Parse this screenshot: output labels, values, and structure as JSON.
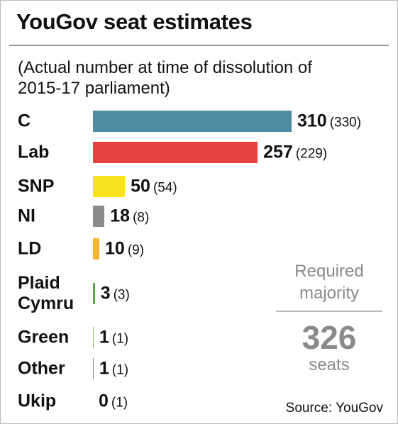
{
  "chart_data": {
    "type": "bar",
    "orientation": "horizontal",
    "title": "YouGov seat estimates",
    "subtitle": "(Actual number at time of dissolution of 2015-17 parliament)",
    "categories": [
      "C",
      "Lab",
      "SNP",
      "NI",
      "LD",
      "Plaid Cymru",
      "Green",
      "Other",
      "Ukip"
    ],
    "values": [
      310,
      257,
      50,
      18,
      10,
      3,
      1,
      1,
      0
    ],
    "colors": [
      "#4f8aa3",
      "#e8413f",
      "#f8e21c",
      "#8c8c8c",
      "#f6b633",
      "#5aa64a",
      "#8bc36a",
      "#8c8c8c",
      "#9a9a9a"
    ],
    "actual_values": [
      330,
      229,
      54,
      8,
      9,
      3,
      1,
      1,
      1
    ],
    "actual_value_labels": [
      "(330)",
      "(229)",
      "(54)",
      "(8)",
      "(9)",
      "(3)",
      "(1)",
      "(1)",
      "(1)"
    ],
    "annotation": {
      "label": "Required majority",
      "value": 326,
      "unit": "seats"
    },
    "source": "Source: YouGov"
  }
}
